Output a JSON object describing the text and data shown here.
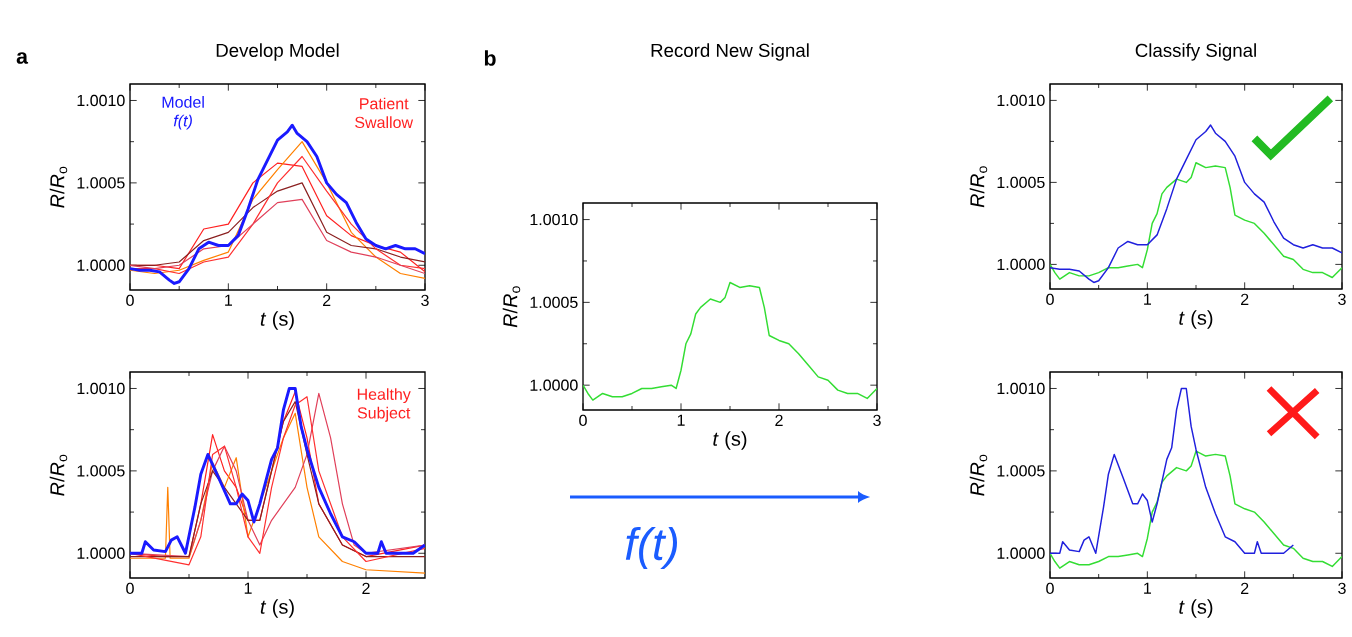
{
  "chart_data": [
    {
      "type": "line",
      "title": "Develop Model",
      "xlabel": "*t* (s)",
      "ylabel": "*R*/*R*$_{o}$",
      "annotations": [
        "a"
      ],
      "xlim": [
        0,
        3
      ],
      "ylim": [
        0.99985,
        1.0011
      ],
      "xticks": [
        0,
        1,
        2,
        3
      ],
      "yticks": [
        {
          "value": 1.0,
          "label": "1.0000"
        },
        {
          "value": 1.0005,
          "label": "1.0005"
        },
        {
          "value": 1.001,
          "label": "1.0010"
        }
      ],
      "series": [
        {
          "name": "Patient Swallow",
          "color": "#ff2020",
          "x": [
            0,
            0.25,
            0.5,
            0.75,
            1.0,
            1.25,
            1.5,
            1.75,
            2.0,
            2.25,
            2.5,
            2.75,
            3.0
          ],
          "values": [
            1.0,
            1.0,
            0.99998,
            1.00022,
            1.00025,
            1.0005,
            1.00062,
            1.0006,
            1.0003,
            1.00018,
            1.00012,
            1.00008,
            0.99996
          ]
        },
        {
          "color": "#ff8000",
          "x": [
            0,
            0.25,
            0.5,
            0.75,
            1.0,
            1.25,
            1.5,
            1.75,
            2.0,
            2.25,
            2.5,
            2.75,
            3.0
          ],
          "values": [
            0.99997,
            0.99995,
            0.99997,
            1.00003,
            1.00008,
            1.0004,
            1.00058,
            1.00075,
            1.0005,
            1.0002,
            1.00005,
            0.99995,
            0.99992
          ]
        },
        {
          "color": "#8b2020",
          "x": [
            0,
            0.25,
            0.5,
            0.75,
            1.0,
            1.25,
            1.5,
            1.75,
            2.0,
            2.25,
            2.5,
            2.75,
            3.0
          ],
          "values": [
            1.0,
            1.0,
            1.00002,
            1.00015,
            1.0002,
            1.00035,
            1.00045,
            1.0005,
            1.0002,
            1.00012,
            1.0001,
            1.00005,
            1.00002
          ]
        },
        {
          "color": "#ff3030",
          "x": [
            0,
            0.25,
            0.5,
            0.75,
            1.0,
            1.25,
            1.5,
            1.75,
            2.0,
            2.25,
            2.5,
            2.75,
            3.0
          ],
          "values": [
            0.99998,
            0.99998,
            0.99995,
            1.00002,
            1.00005,
            1.00025,
            1.0005,
            1.00066,
            1.00045,
            1.00025,
            1.0001,
            1.0,
            0.99998
          ]
        },
        {
          "color": "#e0405a",
          "x": [
            0,
            0.25,
            0.5,
            0.75,
            1.0,
            1.25,
            1.5,
            1.75,
            2.0,
            2.25,
            2.5,
            2.75,
            3.0
          ],
          "values": [
            1.0,
            0.99998,
            1.0,
            1.0001,
            1.00012,
            1.00025,
            1.00038,
            1.0004,
            1.00015,
            1.00008,
            1.00005,
            1.0,
            0.99995
          ]
        },
        {
          "name": "Model *f(t)*",
          "color": "#1a1aff",
          "x": [
            0,
            0.1,
            0.2,
            0.3,
            0.4,
            0.45,
            0.5,
            0.6,
            0.7,
            0.8,
            0.9,
            1.0,
            1.1,
            1.2,
            1.3,
            1.4,
            1.5,
            1.6,
            1.65,
            1.7,
            1.8,
            1.9,
            2.0,
            2.1,
            2.2,
            2.3,
            2.4,
            2.5,
            2.6,
            2.7,
            2.8,
            2.9,
            3.0
          ],
          "values": [
            0.99998,
            0.99997,
            0.99997,
            0.99996,
            0.99991,
            0.99989,
            0.9999,
            0.99998,
            1.0001,
            1.00014,
            1.00012,
            1.00012,
            1.00018,
            1.00034,
            1.00052,
            1.00064,
            1.00076,
            1.00081,
            1.00085,
            1.0008,
            1.00075,
            1.00066,
            1.0005,
            1.00043,
            1.00038,
            1.00026,
            1.00016,
            1.00012,
            1.0001,
            1.00012,
            1.0001,
            1.0001,
            1.00007
          ]
        }
      ]
    },
    {
      "type": "line",
      "xlabel": "*t* (s)",
      "ylabel": "*R*/*R*$_{o}$",
      "xlim": [
        0,
        2.5
      ],
      "ylim": [
        0.99985,
        1.0011
      ],
      "xticks": [
        0,
        1,
        2
      ],
      "yticks": [
        {
          "value": 1.0,
          "label": "1.0000"
        },
        {
          "value": 1.0005,
          "label": "1.0005"
        },
        {
          "value": 1.001,
          "label": "1.0010"
        }
      ],
      "series": [
        {
          "name": "Healthy Subject",
          "color": "#ff2020",
          "x": [
            0,
            0.3,
            0.5,
            0.6,
            0.7,
            0.8,
            0.9,
            1.0,
            1.1,
            1.2,
            1.3,
            1.4,
            1.5,
            1.6,
            1.8,
            2.0,
            2.5
          ],
          "values": [
            1.0,
            0.99998,
            0.99998,
            1.0003,
            1.00072,
            1.0005,
            1.0004,
            1.0002,
            1.0002,
            1.0005,
            1.0008,
            1.00098,
            1.0007,
            1.0003,
            1.00005,
            0.99998,
            1.00005
          ]
        },
        {
          "color": "#ff8000",
          "x": [
            0,
            0.3,
            0.32,
            0.34,
            0.5,
            0.6,
            0.7,
            0.8,
            0.9,
            1.0,
            1.1,
            1.2,
            1.3,
            1.4,
            1.5,
            1.6,
            1.8,
            2.0,
            2.5
          ],
          "values": [
            0.99997,
            0.99997,
            1.0004,
            0.99997,
            0.99997,
            1.0002,
            1.00055,
            1.0004,
            1.00058,
            1.0001,
            1.0003,
            1.0005,
            1.0007,
            1.00085,
            1.0004,
            1.0001,
            0.99995,
            0.9999,
            0.99988
          ]
        },
        {
          "color": "#e0405a",
          "x": [
            0,
            0.5,
            0.6,
            0.7,
            0.8,
            0.9,
            1.0,
            1.1,
            1.2,
            1.3,
            1.4,
            1.5,
            1.6,
            1.7,
            1.8,
            1.9,
            2.0,
            2.5
          ],
          "values": [
            1.0,
            0.99998,
            1.0002,
            1.0005,
            1.00065,
            1.0005,
            1.0002,
            1.00005,
            1.0002,
            1.0003,
            1.0004,
            1.0006,
            1.00097,
            1.0007,
            1.0003,
            1.00005,
            1.0,
            1.00005
          ]
        },
        {
          "color": "#8b2020",
          "x": [
            0,
            0.5,
            0.6,
            0.7,
            0.8,
            0.9,
            1.0,
            1.1,
            1.2,
            1.3,
            1.4,
            1.5,
            1.6,
            1.8,
            2.0,
            2.5
          ],
          "values": [
            0.99998,
            0.99998,
            1.0003,
            1.0005,
            1.0004,
            1.0003,
            1.0002,
            1.0002,
            1.0005,
            1.0008,
            1.00092,
            1.0006,
            1.0003,
            1.00005,
            0.99998,
            0.99998
          ]
        },
        {
          "color": "#ff3030",
          "x": [
            0,
            0.5,
            0.6,
            0.7,
            0.8,
            0.9,
            1.0,
            1.1,
            1.2,
            1.3,
            1.4,
            1.5,
            1.6,
            1.8,
            2.0,
            2.5
          ],
          "values": [
            1.0,
            0.99993,
            1.0001,
            1.0006,
            1.00065,
            1.0004,
            1.0001,
            1.0,
            1.0004,
            1.0007,
            1.0009,
            1.00095,
            1.0005,
            1.0001,
            0.99995,
            1.00003
          ]
        },
        {
          "color": "#1a1aff",
          "x": [
            0,
            0.1,
            0.13,
            0.2,
            0.3,
            0.35,
            0.4,
            0.47,
            0.55,
            0.6,
            0.66,
            0.75,
            0.8,
            0.85,
            0.9,
            0.95,
            1.0,
            1.05,
            1.1,
            1.2,
            1.25,
            1.3,
            1.35,
            1.4,
            1.45,
            1.5,
            1.6,
            1.7,
            1.8,
            1.9,
            2.0,
            2.1,
            2.13,
            2.17,
            2.3,
            2.4,
            2.5
          ],
          "values": [
            1.0,
            1.0,
            1.00007,
            1.00002,
            1.00001,
            1.00008,
            1.0001,
            1.0,
            1.00028,
            1.00048,
            1.0006,
            1.00046,
            1.00038,
            1.0003,
            1.0003,
            1.00036,
            1.00032,
            1.00019,
            1.0003,
            1.00057,
            1.00064,
            1.00087,
            1.001,
            1.001,
            1.00077,
            1.00063,
            1.0004,
            1.00024,
            1.0001,
            1.00007,
            1.0,
            1.0,
            1.00007,
            1.0,
            1.0,
            1.0,
            1.00005
          ]
        }
      ]
    },
    {
      "type": "line",
      "title": "Record New Signal",
      "xlabel": "*t* (s)",
      "ylabel": "*R*/*R*$_{o}$",
      "annotations": [
        "b",
        "f(t)"
      ],
      "xlim": [
        0,
        3
      ],
      "ylim": [
        0.99985,
        1.0011
      ],
      "xticks": [
        0,
        1,
        2,
        3
      ],
      "yticks": [
        {
          "value": 1.0,
          "label": "1.0000"
        },
        {
          "value": 1.0005,
          "label": "1.0005"
        },
        {
          "value": 1.001,
          "label": "1.0010"
        }
      ],
      "series": [
        {
          "color": "#33dd33",
          "x": [
            0,
            0.05,
            0.1,
            0.2,
            0.3,
            0.4,
            0.5,
            0.6,
            0.7,
            0.8,
            0.9,
            0.95,
            1.0,
            1.05,
            1.1,
            1.15,
            1.2,
            1.3,
            1.4,
            1.45,
            1.5,
            1.6,
            1.7,
            1.8,
            1.85,
            1.9,
            2.0,
            2.1,
            2.2,
            2.3,
            2.4,
            2.5,
            2.6,
            2.7,
            2.8,
            2.9,
            3.0
          ],
          "values": [
            1.0,
            0.99995,
            0.99991,
            0.99995,
            0.99993,
            0.99993,
            0.99995,
            0.99998,
            0.99998,
            0.99999,
            1.0,
            0.99998,
            1.00009,
            1.00025,
            1.00031,
            1.00043,
            1.00047,
            1.00052,
            1.0005,
            1.00053,
            1.00062,
            1.00059,
            1.0006,
            1.00059,
            1.00047,
            1.0003,
            1.00027,
            1.00025,
            1.00019,
            1.00012,
            1.00005,
            1.00003,
            0.99997,
            0.99995,
            0.99995,
            0.99992,
            0.99998
          ]
        }
      ]
    },
    {
      "type": "line",
      "title": "Classify Signal",
      "xlabel": "*t* (s)",
      "ylabel": "*R*/*R*$_{o}$",
      "xlim": [
        0,
        3
      ],
      "ylim": [
        0.99985,
        1.0011
      ],
      "xticks": [
        0,
        1,
        2,
        3
      ],
      "yticks": [
        {
          "value": 1.0,
          "label": "1.0000"
        },
        {
          "value": 1.0005,
          "label": "1.0005"
        },
        {
          "value": 1.001,
          "label": "1.0010"
        }
      ],
      "series": [
        {
          "color": "#33dd33",
          "x": [
            0,
            0.05,
            0.1,
            0.2,
            0.3,
            0.4,
            0.5,
            0.6,
            0.7,
            0.8,
            0.9,
            0.95,
            1.0,
            1.05,
            1.1,
            1.15,
            1.2,
            1.3,
            1.4,
            1.45,
            1.5,
            1.6,
            1.7,
            1.8,
            1.85,
            1.9,
            2.0,
            2.1,
            2.2,
            2.3,
            2.4,
            2.5,
            2.6,
            2.7,
            2.8,
            2.9,
            3.0
          ],
          "values": [
            1.0,
            0.99995,
            0.99991,
            0.99995,
            0.99993,
            0.99993,
            0.99995,
            0.99998,
            0.99998,
            0.99999,
            1.0,
            0.99998,
            1.00009,
            1.00025,
            1.00031,
            1.00043,
            1.00047,
            1.00052,
            1.0005,
            1.00053,
            1.00062,
            1.00059,
            1.0006,
            1.00059,
            1.00047,
            1.0003,
            1.00027,
            1.00025,
            1.00019,
            1.00012,
            1.00005,
            1.00003,
            0.99997,
            0.99995,
            0.99995,
            0.99992,
            0.99998
          ]
        },
        {
          "color": "#2020dd",
          "x": [
            0,
            0.1,
            0.2,
            0.3,
            0.4,
            0.45,
            0.5,
            0.6,
            0.7,
            0.8,
            0.9,
            1.0,
            1.1,
            1.2,
            1.3,
            1.4,
            1.5,
            1.6,
            1.65,
            1.7,
            1.8,
            1.9,
            2.0,
            2.1,
            2.2,
            2.3,
            2.4,
            2.5,
            2.6,
            2.7,
            2.8,
            2.9,
            3.0
          ],
          "values": [
            0.99998,
            0.99997,
            0.99997,
            0.99996,
            0.99991,
            0.99989,
            0.9999,
            0.99998,
            1.0001,
            1.00014,
            1.00012,
            1.00012,
            1.00018,
            1.00034,
            1.00052,
            1.00064,
            1.00076,
            1.00081,
            1.00085,
            1.0008,
            1.00075,
            1.00066,
            1.0005,
            1.00043,
            1.00038,
            1.00026,
            1.00016,
            1.00012,
            1.0001,
            1.00012,
            1.0001,
            1.0001,
            1.00007
          ]
        }
      ]
    },
    {
      "type": "line",
      "xlabel": "*t* (s)",
      "ylabel": "*R*/*R*$_{o}$",
      "xlim": [
        0,
        3
      ],
      "ylim": [
        0.99985,
        1.0011
      ],
      "xticks": [
        0,
        1,
        2,
        3
      ],
      "yticks": [
        {
          "value": 1.0,
          "label": "1.0000"
        },
        {
          "value": 1.0005,
          "label": "1.0005"
        },
        {
          "value": 1.001,
          "label": "1.0010"
        }
      ],
      "series": [
        {
          "color": "#33dd33",
          "x": [
            0,
            0.05,
            0.1,
            0.2,
            0.3,
            0.4,
            0.5,
            0.6,
            0.7,
            0.8,
            0.9,
            0.95,
            1.0,
            1.05,
            1.1,
            1.15,
            1.2,
            1.3,
            1.4,
            1.45,
            1.5,
            1.6,
            1.7,
            1.8,
            1.85,
            1.9,
            2.0,
            2.1,
            2.2,
            2.3,
            2.4,
            2.5,
            2.6,
            2.7,
            2.8,
            2.9,
            3.0
          ],
          "values": [
            1.0,
            0.99995,
            0.99991,
            0.99995,
            0.99993,
            0.99993,
            0.99995,
            0.99998,
            0.99998,
            0.99999,
            1.0,
            0.99998,
            1.00009,
            1.00025,
            1.00031,
            1.00043,
            1.00047,
            1.00052,
            1.0005,
            1.00053,
            1.00062,
            1.00059,
            1.0006,
            1.00059,
            1.00047,
            1.0003,
            1.00027,
            1.00025,
            1.00019,
            1.00012,
            1.00005,
            1.00003,
            0.99997,
            0.99995,
            0.99995,
            0.99992,
            0.99998
          ]
        },
        {
          "color": "#2020dd",
          "x": [
            0,
            0.1,
            0.13,
            0.2,
            0.3,
            0.35,
            0.4,
            0.47,
            0.55,
            0.6,
            0.66,
            0.75,
            0.8,
            0.85,
            0.9,
            0.95,
            1.0,
            1.05,
            1.1,
            1.2,
            1.25,
            1.3,
            1.35,
            1.4,
            1.45,
            1.5,
            1.6,
            1.7,
            1.8,
            1.9,
            2.0,
            2.1,
            2.13,
            2.17,
            2.3,
            2.4,
            2.5
          ],
          "values": [
            1.0,
            1.0,
            1.00007,
            1.00002,
            1.00001,
            1.00008,
            1.0001,
            1.0,
            1.00028,
            1.00048,
            1.0006,
            1.00046,
            1.00038,
            1.0003,
            1.0003,
            1.00036,
            1.00032,
            1.00019,
            1.0003,
            1.00057,
            1.00064,
            1.00087,
            1.001,
            1.001,
            1.00077,
            1.00063,
            1.0004,
            1.00024,
            1.0001,
            1.00007,
            1.0,
            1.0,
            1.00007,
            1.0,
            1.0,
            1.0,
            1.00005
          ]
        }
      ]
    }
  ]
}
